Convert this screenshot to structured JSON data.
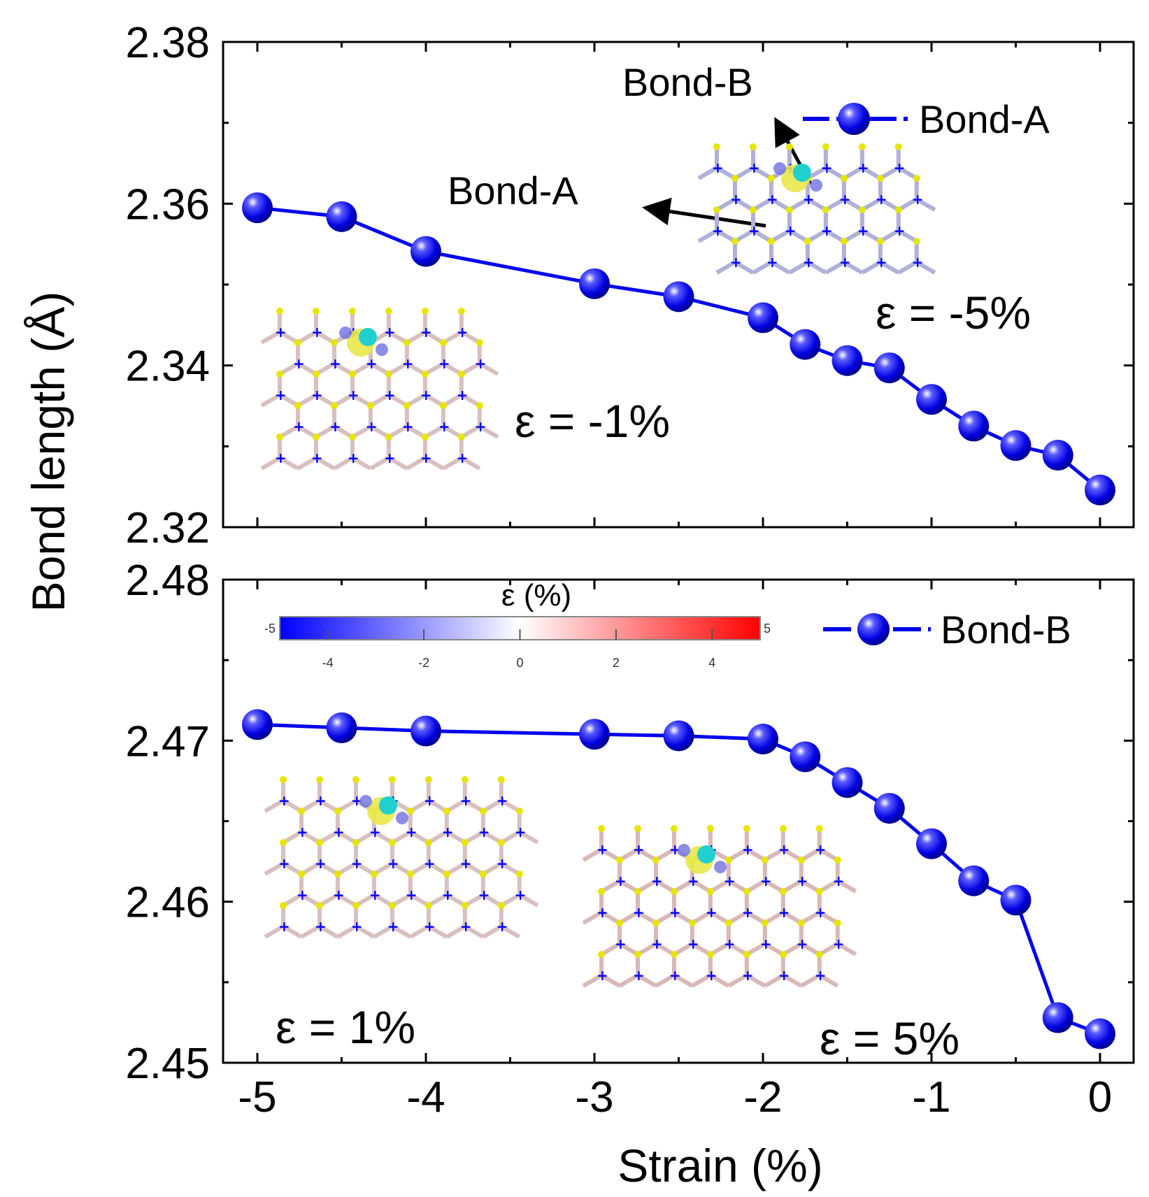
{
  "chart_data": [
    {
      "type": "line",
      "panel": "top",
      "ylabel": "Bond length (Å)",
      "xlabel": "Strain (%)",
      "xlim": [
        -5.2,
        0.2
      ],
      "ylim": [
        2.32,
        2.38
      ],
      "yticks": [
        "2.32",
        "2.34",
        "2.36",
        "2.38"
      ],
      "series": [
        {
          "name": "Bond-A",
          "color": "#0000ee",
          "x": [
            -5,
            -4.5,
            -4,
            -3,
            -2.5,
            -2,
            -1.75,
            -1.5,
            -1.25,
            -1,
            -0.75,
            -0.5,
            -0.25,
            0
          ],
          "y": [
            2.3595,
            2.3584,
            2.3541,
            2.3501,
            2.3485,
            2.3459,
            2.3426,
            2.3406,
            2.3397,
            2.3358,
            2.3325,
            2.3301,
            2.3289,
            2.3246
          ]
        }
      ],
      "legend": "top-right",
      "annotations": [
        "Bond-B",
        "Bond-A",
        "ε = -5%",
        "ε = -1%"
      ]
    },
    {
      "type": "line",
      "panel": "bottom",
      "xlabel": "Strain (%)",
      "xlim": [
        -5.2,
        0.2
      ],
      "ylim": [
        2.45,
        2.48
      ],
      "yticks": [
        "2.45",
        "2.46",
        "2.47",
        "2.48"
      ],
      "xticks": [
        "-5",
        "-4",
        "-3",
        "-2",
        "-1",
        "0"
      ],
      "series": [
        {
          "name": "Bond-B",
          "color": "#0000ee",
          "x": [
            -5,
            -4.5,
            -4,
            -3,
            -2.5,
            -2,
            -1.75,
            -1.5,
            -1.25,
            -1,
            -0.75,
            -0.5,
            -0.25,
            0
          ],
          "y": [
            2.471,
            2.4708,
            2.4706,
            2.4704,
            2.4703,
            2.4701,
            2.469,
            2.4674,
            2.4658,
            2.4636,
            2.4613,
            2.4601,
            2.4528,
            2.4518
          ]
        }
      ],
      "legend": "top-right",
      "annotations": [
        "ε = 1%",
        "ε = 5%"
      ],
      "colorbar": {
        "title": "ε (%)",
        "min_label": "-5",
        "max_label": "5",
        "ticks": [
          "-4",
          "-2",
          "0",
          "2",
          "4"
        ],
        "colors": [
          "#0000ff",
          "#ffffff",
          "#ff0000"
        ]
      }
    }
  ],
  "labels": {
    "ylabel": "Bond length (Å)",
    "xlabel": "Strain (%)",
    "top_legend": "Bond-A",
    "bottom_legend": "Bond-B",
    "bond_b_arrow": "Bond-B",
    "bond_a_arrow": "Bond-A",
    "eps_m5": "ε = -5%",
    "eps_m1": "ε = -1%",
    "eps_1": "ε = 1%",
    "eps_5": "ε = 5%"
  }
}
